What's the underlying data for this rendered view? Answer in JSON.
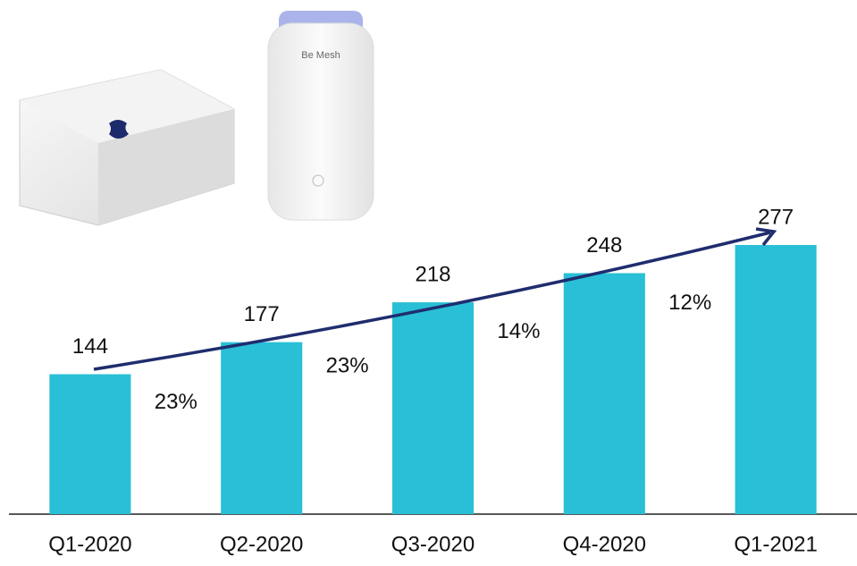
{
  "chart_data": {
    "type": "bar",
    "categories": [
      "Q1-2020",
      "Q2-2020",
      "Q3-2020",
      "Q4-2020",
      "Q1-2021"
    ],
    "values": [
      144,
      177,
      218,
      248,
      277
    ],
    "color": "#29bfd6",
    "ylim": [
      0,
      300
    ],
    "annotations": [
      "23%",
      "23%",
      "14%",
      "12%"
    ],
    "device_label": "Be Mesh"
  }
}
